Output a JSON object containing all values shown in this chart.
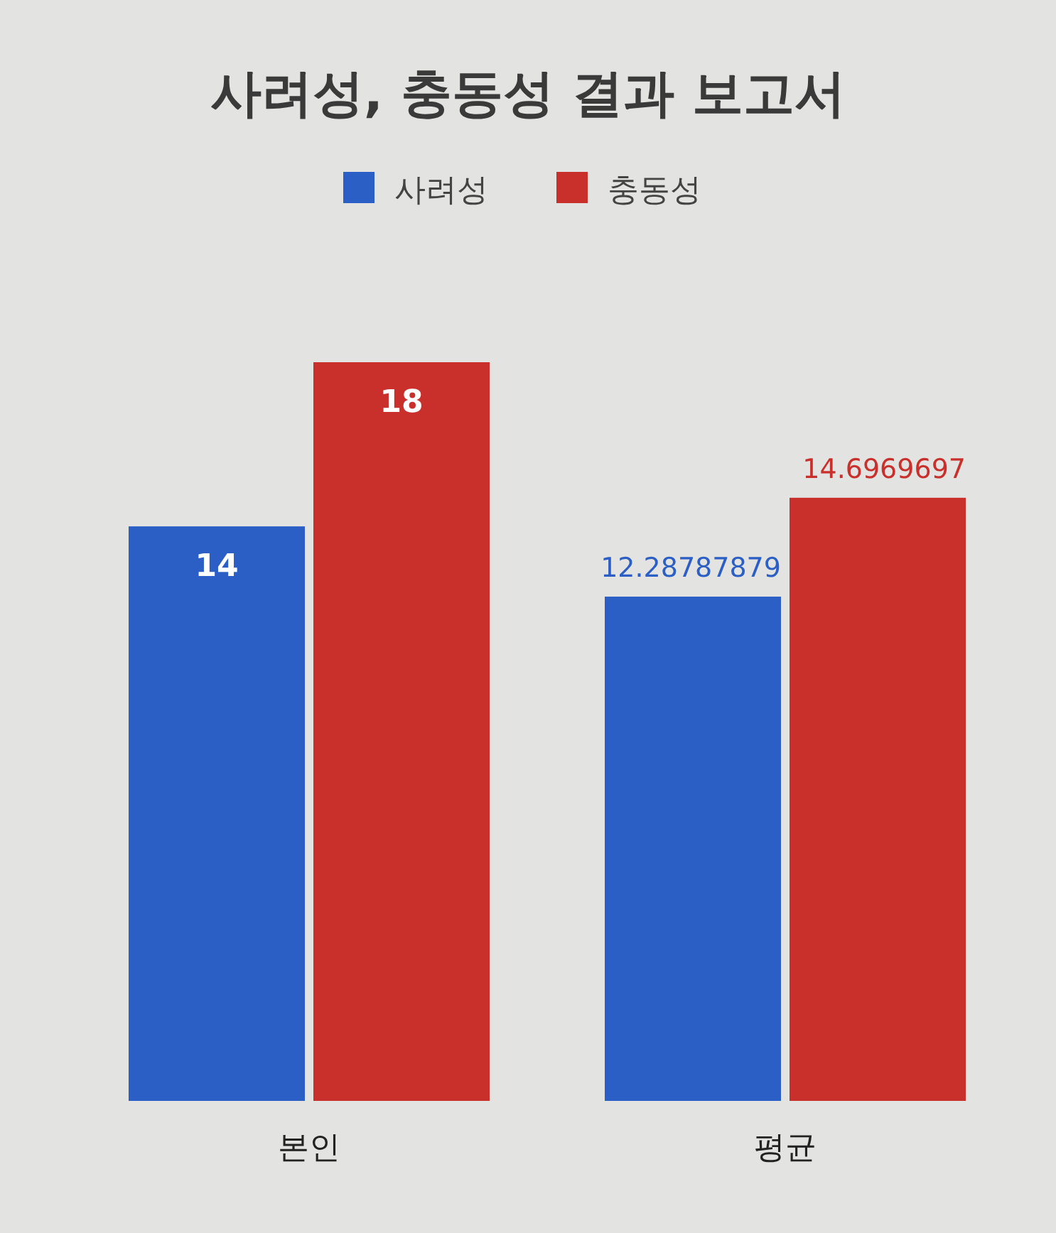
{
  "chart_data": {
    "type": "bar",
    "title": "사려성, 충동성 결과 보고서",
    "categories": [
      "본인",
      "평균"
    ],
    "series": [
      {
        "name": "사려성",
        "color": "#2b5fc6",
        "values": [
          14,
          12.28787879
        ]
      },
      {
        "name": "충동성",
        "color": "#c9302c",
        "values": [
          18,
          14.6969697
        ]
      }
    ],
    "data_labels": true,
    "legend": "top"
  }
}
